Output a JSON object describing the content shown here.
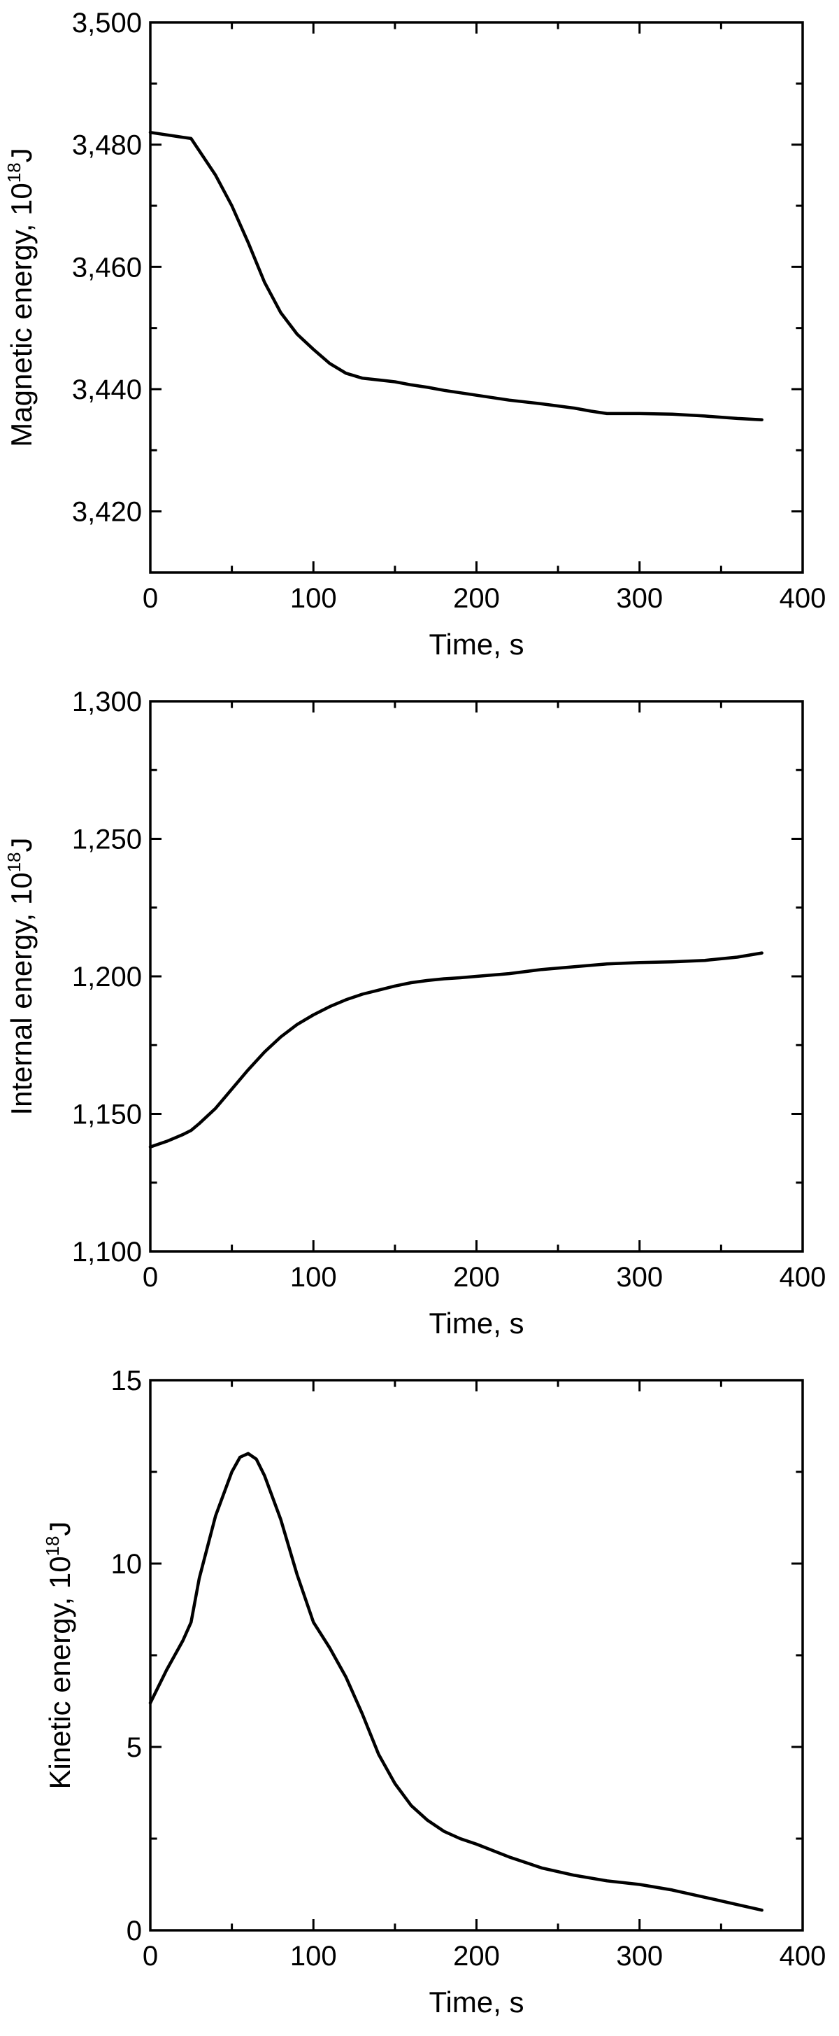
{
  "chart_data": [
    {
      "type": "line",
      "xlabel": "Time, s",
      "ylabel": "Magnetic energy, 10",
      "ylabel_sup": "18",
      "ylabel_unit": "J",
      "xlim": [
        0,
        400
      ],
      "ylim": [
        3410,
        3500
      ],
      "x_ticks": [
        0,
        100,
        200,
        300,
        400
      ],
      "x_tick_labels": [
        "0",
        "100",
        "200",
        "300",
        "400"
      ],
      "y_ticks": [
        3420,
        3440,
        3460,
        3480,
        3500
      ],
      "y_tick_labels": [
        "3,420",
        "3,440",
        "3,460",
        "3,480",
        "3,500"
      ],
      "grid": false,
      "series": [
        {
          "x": [
            0,
            10,
            20,
            25,
            30,
            40,
            50,
            60,
            70,
            80,
            90,
            100,
            110,
            120,
            130,
            140,
            150,
            160,
            170,
            180,
            190,
            200,
            220,
            240,
            260,
            270,
            280,
            300,
            320,
            340,
            360,
            375
          ],
          "y": [
            3482,
            3481.6,
            3481.2,
            3481.0,
            3479,
            3475,
            3470,
            3464,
            3457.5,
            3452.5,
            3449,
            3446.5,
            3444.2,
            3442.6,
            3441.8,
            3441.5,
            3441.2,
            3440.7,
            3440.3,
            3439.8,
            3439.4,
            3439.0,
            3438.2,
            3437.6,
            3436.9,
            3436.4,
            3436.0,
            3436.0,
            3435.9,
            3435.6,
            3435.2,
            3435.0
          ]
        }
      ]
    },
    {
      "type": "line",
      "xlabel": "Time, s",
      "ylabel": "Internal energy, 10",
      "ylabel_sup": "18",
      "ylabel_unit": "J",
      "xlim": [
        0,
        400
      ],
      "ylim": [
        1100,
        1300
      ],
      "x_ticks": [
        0,
        100,
        200,
        300,
        400
      ],
      "x_tick_labels": [
        "0",
        "100",
        "200",
        "300",
        "400"
      ],
      "y_ticks": [
        1100,
        1150,
        1200,
        1250,
        1300
      ],
      "y_tick_labels": [
        "1,100",
        "1,150",
        "1,200",
        "1,250",
        "1,300"
      ],
      "grid": false,
      "series": [
        {
          "x": [
            0,
            10,
            20,
            25,
            30,
            40,
            50,
            60,
            70,
            80,
            90,
            100,
            110,
            120,
            130,
            140,
            150,
            160,
            170,
            180,
            190,
            200,
            220,
            240,
            260,
            280,
            300,
            320,
            340,
            360,
            375
          ],
          "y": [
            1138,
            1140,
            1142.5,
            1144,
            1146.5,
            1152,
            1159,
            1166,
            1172.5,
            1178,
            1182.5,
            1186,
            1189,
            1191.5,
            1193.5,
            1195,
            1196.5,
            1197.7,
            1198.5,
            1199.1,
            1199.5,
            1200,
            1201,
            1202.5,
            1203.5,
            1204.5,
            1205,
            1205.3,
            1205.8,
            1207,
            1208.5
          ]
        }
      ]
    },
    {
      "type": "line",
      "xlabel": "Time, s",
      "ylabel": "Kinetic energy, 10",
      "ylabel_sup": "18",
      "ylabel_unit": "J",
      "xlim": [
        0,
        400
      ],
      "ylim": [
        0,
        15
      ],
      "x_ticks": [
        0,
        100,
        200,
        300,
        400
      ],
      "x_tick_labels": [
        "0",
        "100",
        "200",
        "300",
        "400"
      ],
      "y_ticks": [
        0,
        5,
        10,
        15
      ],
      "y_tick_labels": [
        "0",
        "5",
        "10",
        "15"
      ],
      "grid": false,
      "series": [
        {
          "x": [
            0,
            10,
            20,
            25,
            30,
            40,
            50,
            55,
            60,
            65,
            70,
            80,
            90,
            100,
            110,
            120,
            130,
            140,
            150,
            160,
            170,
            180,
            190,
            200,
            220,
            240,
            260,
            280,
            300,
            320,
            340,
            360,
            375
          ],
          "y": [
            6.2,
            7.1,
            7.9,
            8.4,
            9.6,
            11.3,
            12.5,
            12.9,
            13.0,
            12.85,
            12.4,
            11.2,
            9.7,
            8.4,
            7.7,
            6.9,
            5.9,
            4.8,
            4.0,
            3.4,
            3.0,
            2.7,
            2.5,
            2.35,
            2.0,
            1.7,
            1.5,
            1.35,
            1.25,
            1.1,
            0.9,
            0.7,
            0.55
          ]
        }
      ]
    }
  ]
}
